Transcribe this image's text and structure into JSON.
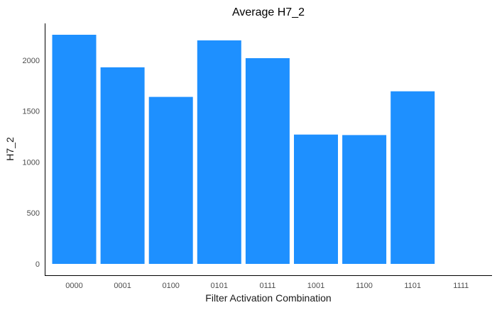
{
  "chart_data": {
    "type": "bar",
    "title": "Average H7_2",
    "xlabel": "Filter Activation Combination",
    "ylabel": "H7_2",
    "categories": [
      "0000",
      "0001",
      "0100",
      "0101",
      "0111",
      "1001",
      "1100",
      "1101",
      "1111"
    ],
    "values": [
      2250,
      1930,
      1640,
      2195,
      2020,
      1270,
      1265,
      1695,
      null
    ],
    "yticks": [
      0,
      500,
      1000,
      1500,
      2000
    ],
    "ylim": [
      0,
      2250
    ],
    "bar_color": "#1E90FF",
    "grid": false,
    "legend": "none"
  }
}
